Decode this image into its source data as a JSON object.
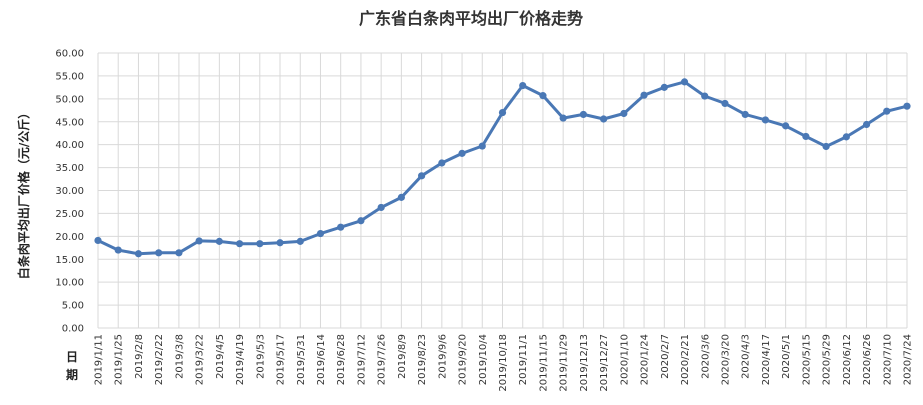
{
  "chart_data": {
    "type": "line",
    "title": "广东省白条肉平均出厂价格走势",
    "ylabel": "白条肉平均出厂价格（元/公斤）",
    "xlabel": "日期",
    "ylim": [
      0,
      60
    ],
    "ytick_step": 5,
    "ytick_labels": [
      "0.00",
      "5.00",
      "10.00",
      "15.00",
      "20.00",
      "25.00",
      "30.00",
      "35.00",
      "40.00",
      "45.00",
      "50.00",
      "55.00",
      "60.00"
    ],
    "grid": true,
    "legend": "none",
    "color": "#4a78b5",
    "categories": [
      "2019/1/11",
      "2019/1/25",
      "2019/2/8",
      "2019/2/22",
      "2019/3/8",
      "2019/3/22",
      "2019/4/5",
      "2019/4/19",
      "2019/5/3",
      "2019/5/17",
      "2019/5/31",
      "2019/6/14",
      "2019/6/28",
      "2019/7/12",
      "2019/7/26",
      "2019/8/9",
      "2019/8/23",
      "2019/9/6",
      "2019/9/20",
      "2019/10/4",
      "2019/10/18",
      "2019/11/1",
      "2019/11/15",
      "2019/11/29",
      "2019/12/13",
      "2019/12/27",
      "2020/1/10",
      "2020/1/24",
      "2020/2/7",
      "2020/2/21",
      "2020/3/6",
      "2020/3/20",
      "2020/4/3",
      "2020/4/17",
      "2020/5/1",
      "2020/5/15",
      "2020/5/29",
      "2020/6/12",
      "2020/6/26",
      "2020/7/10",
      "2020/7/24"
    ],
    "values": [
      19.1,
      17.0,
      16.2,
      16.4,
      16.4,
      19.0,
      18.9,
      18.4,
      18.4,
      18.6,
      18.9,
      20.6,
      22.0,
      23.4,
      26.3,
      28.5,
      33.2,
      36.0,
      38.1,
      39.7,
      47.0,
      52.9,
      50.7,
      45.8,
      46.6,
      45.6,
      46.8,
      50.8,
      52.5,
      53.7,
      50.6,
      49.0,
      46.6,
      45.4,
      44.1,
      41.8,
      39.6,
      41.7,
      44.4,
      47.3,
      48.4
    ]
  }
}
